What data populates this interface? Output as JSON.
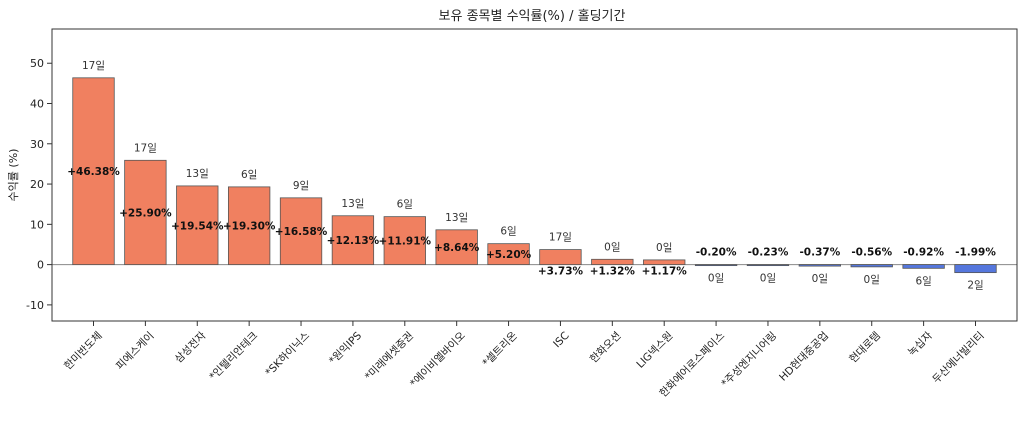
{
  "chart_data": {
    "type": "bar",
    "title": "보유 종목별 수익률(%) / 홀딩기간",
    "xlabel": "",
    "ylabel": "수익률 (%)",
    "ylim": [
      -14,
      58.5
    ],
    "yticks": [
      -10,
      0,
      10,
      20,
      30,
      40,
      50
    ],
    "categories": [
      "한미반도체",
      "피에스케이",
      "삼성전자",
      "*인텔리안테크",
      "*SK하이닉스",
      "*원익IPS",
      "*미래에셋증권",
      "*에이비엘바이오",
      "*셀트리온",
      "ISC",
      "한화오션",
      "LIG넥스원",
      "한화에어로스페이스",
      "*주성엔지니어링",
      "HD현대중공업",
      "현대로템",
      "녹십자",
      "두산에너빌리티"
    ],
    "values": [
      46.38,
      25.9,
      19.54,
      19.3,
      16.58,
      12.13,
      11.91,
      8.64,
      5.2,
      3.73,
      1.32,
      1.17,
      -0.2,
      -0.23,
      -0.37,
      -0.56,
      -0.92,
      -1.99
    ],
    "value_labels": [
      "+46.38%",
      "+25.90%",
      "+19.54%",
      "+19.30%",
      "+16.58%",
      "+12.13%",
      "+11.91%",
      "+8.64%",
      "+5.20%",
      "+3.73%",
      "+1.32%",
      "+1.17%",
      "-0.20%",
      "-0.23%",
      "-0.37%",
      "-0.56%",
      "-0.92%",
      "-1.99%"
    ],
    "holding_labels": [
      "17일",
      "17일",
      "13일",
      "6일",
      "9일",
      "13일",
      "6일",
      "13일",
      "6일",
      "17일",
      "0일",
      "0일",
      "0일",
      "0일",
      "0일",
      "0일",
      "6일",
      "2일"
    ],
    "colors": {
      "positive": "#f08060",
      "negative": "#5577dd",
      "edge": "#555555",
      "zero_line": "#888888"
    },
    "grid": false,
    "legend": "none"
  }
}
